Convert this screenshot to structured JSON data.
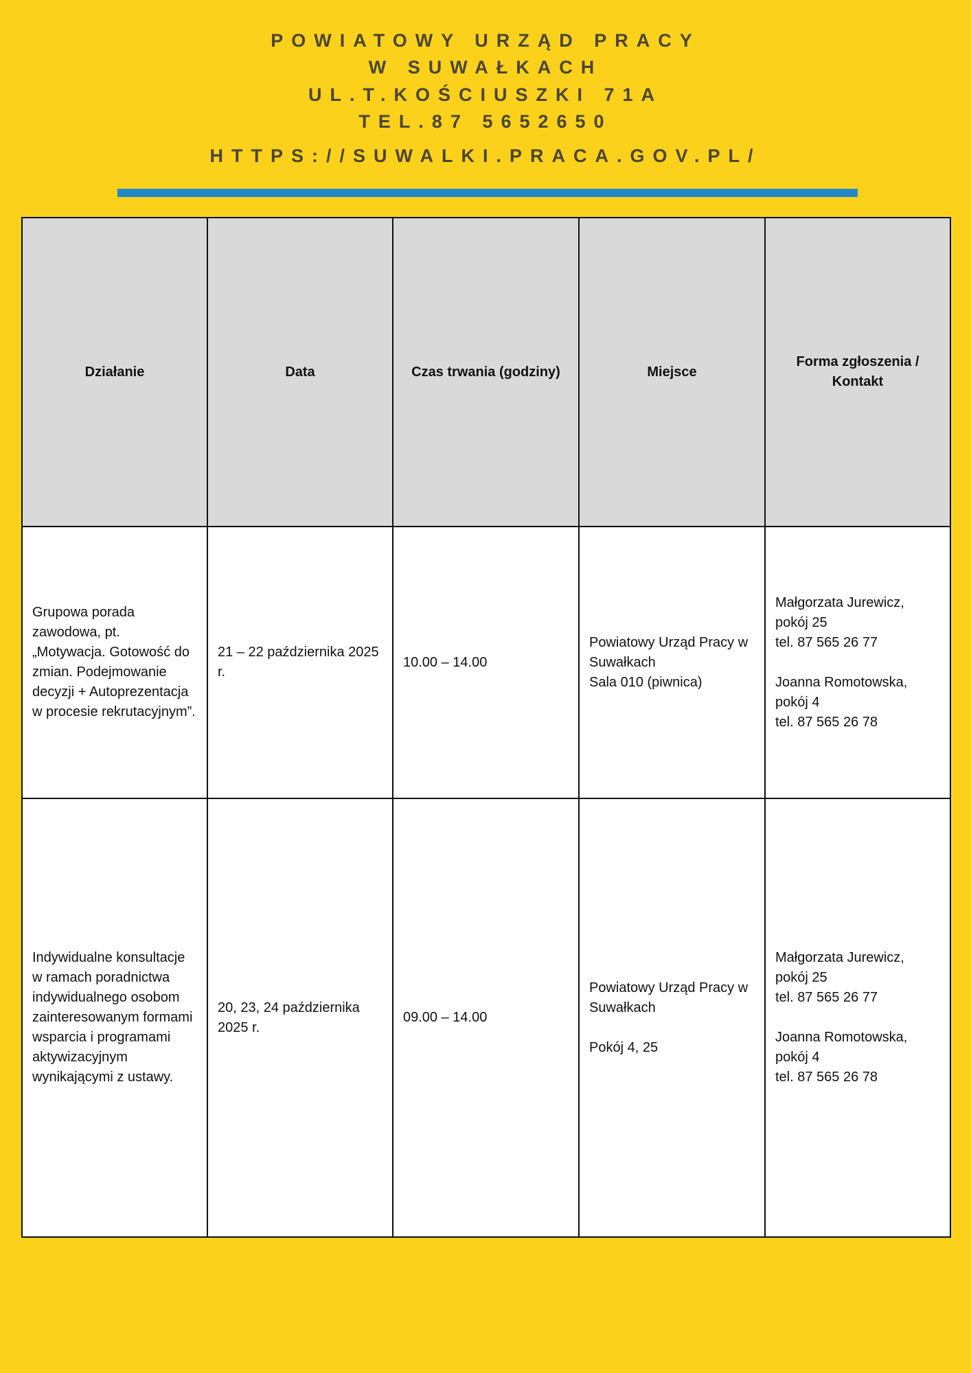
{
  "header": {
    "lines": [
      "POWIATOWY URZĄD PRACY",
      "W SUWAŁKACH",
      "UL.T.KOŚCIUSZKI 71A",
      "TEL.87 5652650",
      "HTTPS://SUWALKI.PRACA.GOV.PL/"
    ],
    "bar_color": "#2388c9",
    "background_color": "#fcd11c"
  },
  "table": {
    "columns": [
      "Działanie",
      "Data",
      "Czas trwania (godziny)",
      "Miejsce",
      "Forma zgłoszenia / Kontakt"
    ],
    "rows": [
      [
        "Grupowa porada zawodowa, pt. „Motywacja. Gotowość do zmian. Podejmowanie decyzji + Autoprezentacja w procesie rekrutacyjnym”.",
        "21 – 22 października 2025 r.",
        "10.00 – 14.00",
        "Powiatowy Urząd Pracy w Suwałkach\n Sala 010 (piwnica)",
        "Małgorzata Jurewicz, pokój 25\ntel. 87 565 26 77\n\nJoanna Romotowska, pokój 4\ntel. 87 565 26 78"
      ],
      [
        "Indywidualne konsultacje w ramach poradnictwa indywidualnego osobom zainteresowanym formami wsparcia i programami aktywizacyjnym wynikającymi z ustawy.",
        "20, 23, 24 października 2025 r.",
        "09.00 – 14.00",
        "Powiatowy Urząd Pracy w Suwałkach\n\nPokój 4, 25",
        "Małgorzata Jurewicz, pokój 25\ntel. 87 565 26 77\n\nJoanna Romotowska, pokój 4\ntel. 87 565 26 78"
      ]
    ]
  }
}
